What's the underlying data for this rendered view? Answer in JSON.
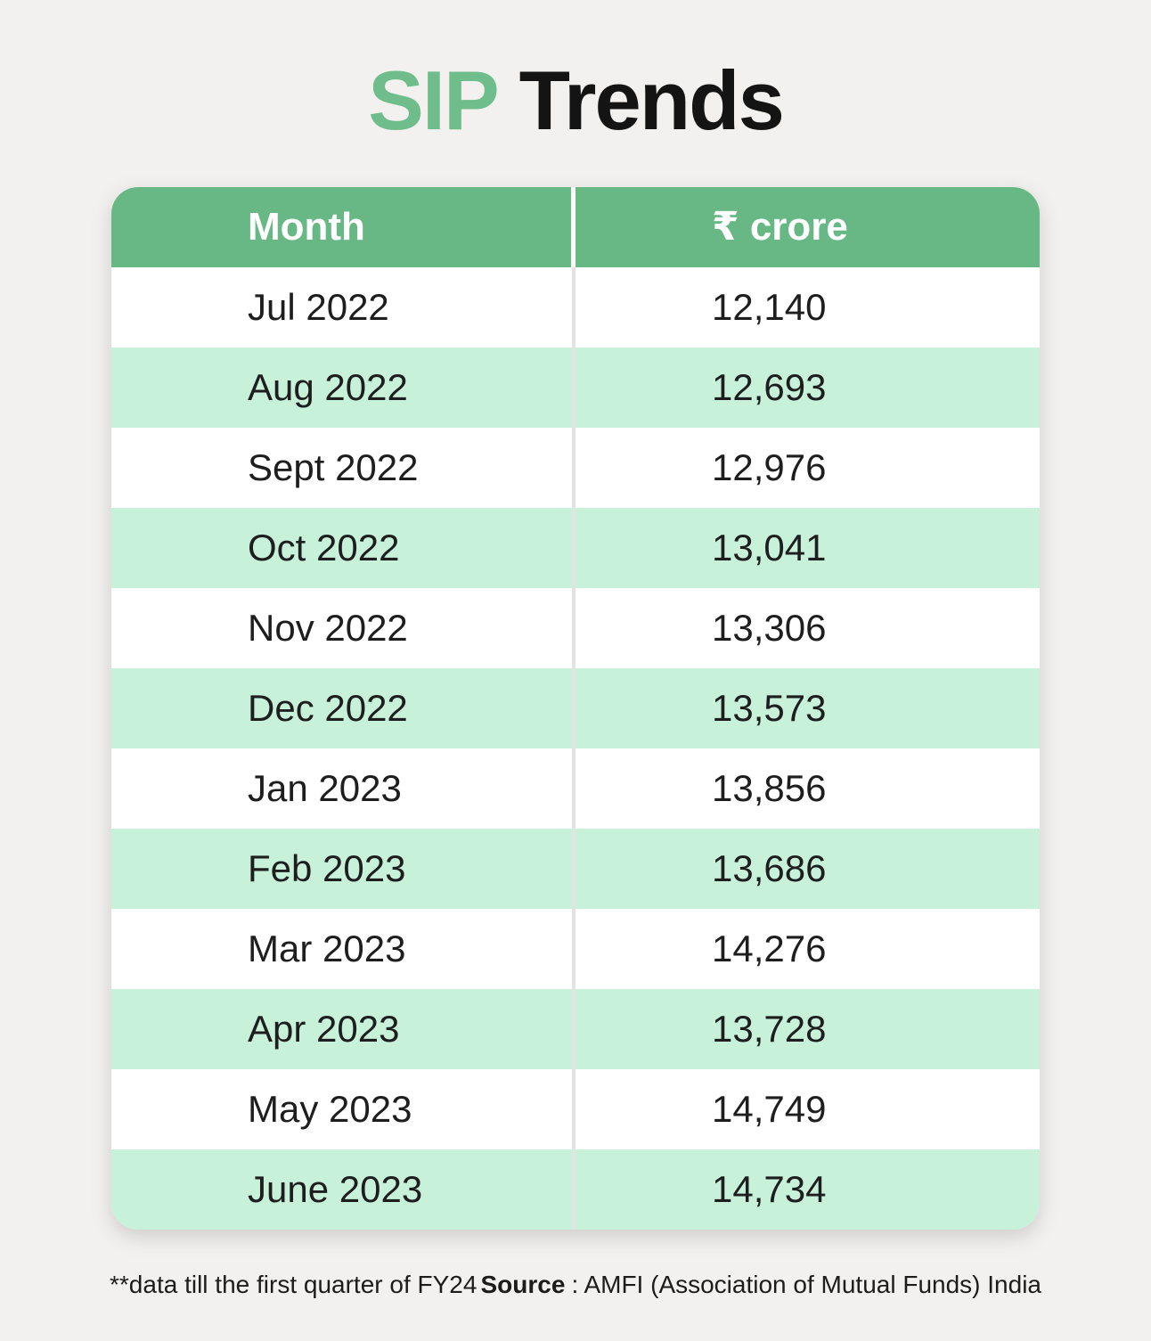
{
  "title": {
    "highlight": "SIP",
    "rest": "Trends"
  },
  "table": {
    "columns": [
      "Month",
      "₹ crore"
    ],
    "rows": [
      {
        "month": "Jul 2022",
        "value": "12,140"
      },
      {
        "month": "Aug 2022",
        "value": "12,693"
      },
      {
        "month": "Sept 2022",
        "value": "12,976"
      },
      {
        "month": "Oct 2022",
        "value": "13,041"
      },
      {
        "month": "Nov 2022",
        "value": "13,306"
      },
      {
        "month": "Dec 2022",
        "value": "13,573"
      },
      {
        "month": "Jan 2023",
        "value": "13,856"
      },
      {
        "month": "Feb 2023",
        "value": "13,686"
      },
      {
        "month": "Mar 2023",
        "value": "14,276"
      },
      {
        "month": "Apr 2023",
        "value": "13,728"
      },
      {
        "month": "May 2023",
        "value": "14,749"
      },
      {
        "month": "June 2023",
        "value": "14,734"
      }
    ]
  },
  "chart_data": {
    "type": "table",
    "title": "SIP Trends",
    "categories": [
      "Jul 2022",
      "Aug 2022",
      "Sept 2022",
      "Oct 2022",
      "Nov 2022",
      "Dec 2022",
      "Jan 2023",
      "Feb 2023",
      "Mar 2023",
      "Apr 2023",
      "May 2023",
      "June 2023"
    ],
    "values": [
      12140,
      12693,
      12976,
      13041,
      13306,
      13573,
      13856,
      13686,
      14276,
      13728,
      14749,
      14734
    ],
    "ylabel": "₹ crore"
  },
  "footer": {
    "note": "**data till the first quarter of FY24",
    "source_label": "Source",
    "source_rest": ": AMFI (Association of Mutual Funds) India"
  },
  "colors": {
    "header_green": "#67b884",
    "row_light_green": "#c7f2d9",
    "title_green": "#6fbd8a",
    "text_dark": "#1d1d1d",
    "page_background": "#f2f1ee"
  }
}
